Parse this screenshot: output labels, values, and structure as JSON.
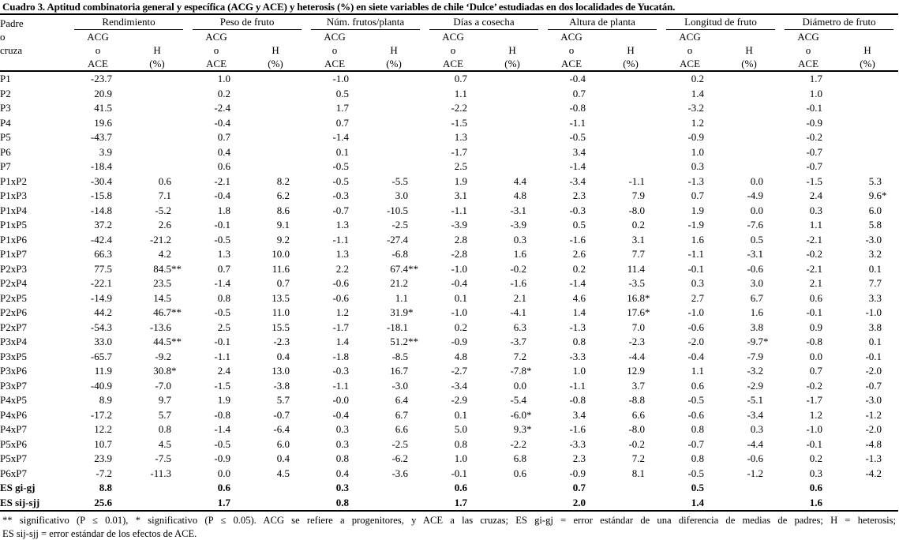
{
  "title": "Cuadro 3. Aptitud combinatoria general y específica (ACG y ACE) y heterosis (%) en siete variables de chile ‘Dulce’ estudiadas en dos localidades de Yucatán.",
  "table": {
    "row_header_lines": [
      "Padre",
      "o",
      "cruza"
    ],
    "groups": [
      "Rendimiento",
      "Peso de fruto",
      "Núm. frutos/planta",
      "Días a cosecha",
      "Altura de planta",
      "Longitud de fruto",
      "Diámetro de fruto"
    ],
    "subheaders": {
      "acg_lines": [
        "ACG",
        "o",
        "ACE"
      ],
      "h_lines": [
        "H",
        "(%)"
      ]
    },
    "rows": [
      {
        "label": "P1",
        "bold": false,
        "values": [
          "-23.7",
          "",
          "1.0",
          "",
          "-1.0",
          "",
          "0.7",
          "",
          "-0.4",
          "",
          "0.2",
          "",
          "1.7",
          ""
        ]
      },
      {
        "label": "P2",
        "bold": false,
        "values": [
          "20.9",
          "",
          "0.2",
          "",
          "0.5",
          "",
          "1.1",
          "",
          "0.7",
          "",
          "1.4",
          "",
          "1.0",
          ""
        ]
      },
      {
        "label": "P3",
        "bold": false,
        "values": [
          "41.5",
          "",
          "-2.4",
          "",
          "1.7",
          "",
          "-2.2",
          "",
          "-0.8",
          "",
          "-3.2",
          "",
          "-0.1",
          ""
        ]
      },
      {
        "label": "P4",
        "bold": false,
        "values": [
          "19.6",
          "",
          "-0.4",
          "",
          "0.7",
          "",
          "-1.5",
          "",
          "-1.1",
          "",
          "1.2",
          "",
          "-0.9",
          ""
        ]
      },
      {
        "label": "P5",
        "bold": false,
        "values": [
          "-43.7",
          "",
          "0.7",
          "",
          "-1.4",
          "",
          "1.3",
          "",
          "-0.5",
          "",
          "-0.9",
          "",
          "-0.2",
          ""
        ]
      },
      {
        "label": "P6",
        "bold": false,
        "values": [
          "3.9",
          "",
          "0.4",
          "",
          "0.1",
          "",
          "-1.7",
          "",
          "3.4",
          "",
          "1.0",
          "",
          "-0.7",
          ""
        ]
      },
      {
        "label": "P7",
        "bold": false,
        "values": [
          "-18.4",
          "",
          "0.6",
          "",
          "-0.5",
          "",
          "2.5",
          "",
          "-1.4",
          "",
          "0.3",
          "",
          "-0.7",
          ""
        ]
      },
      {
        "label": "P1xP2",
        "bold": false,
        "values": [
          "-30.4",
          "0.6",
          "-2.1",
          "8.2",
          "-0.5",
          "-5.5",
          "1.9",
          "4.4",
          "-3.4",
          "-1.1",
          "-1.3",
          "0.0",
          "-1.5",
          "5.3"
        ]
      },
      {
        "label": "P1xP3",
        "bold": false,
        "values": [
          "-15.8",
          "7.1",
          "-0.4",
          "6.2",
          "-0.3",
          "3.0",
          "3.1",
          "4.8",
          "2.3",
          "7.9",
          "0.7",
          "-4.9",
          "2.4",
          "9.6*"
        ]
      },
      {
        "label": "P1xP4",
        "bold": false,
        "values": [
          "-14.8",
          "-5.2",
          "1.8",
          "8.6",
          "-0.7",
          "-10.5",
          "-1.1",
          "-3.1",
          "-0.3",
          "-8.0",
          "1.9",
          "0.0",
          "0.3",
          "6.0"
        ]
      },
      {
        "label": "P1xP5",
        "bold": false,
        "values": [
          "37.2",
          "2.6",
          "-0.1",
          "9.1",
          "1.3",
          "-2.5",
          "-3.9",
          "-3.9",
          "0.5",
          "0.2",
          "-1.9",
          "-7.6",
          "1.1",
          "5.8"
        ]
      },
      {
        "label": "P1xP6",
        "bold": false,
        "values": [
          "-42.4",
          "-21.2",
          "-0.5",
          "9.2",
          "-1.1",
          "-27.4",
          "2.8",
          "0.3",
          "-1.6",
          "3.1",
          "1.6",
          "0.5",
          "-2.1",
          "-3.0"
        ]
      },
      {
        "label": "P1xP7",
        "bold": false,
        "values": [
          "66.3",
          "4.2",
          "1.3",
          "10.0",
          "1.3",
          "-6.8",
          "-2.8",
          "1.6",
          "2.6",
          "7.7",
          "-1.1",
          "-3.1",
          "-0.2",
          "3.2"
        ]
      },
      {
        "label": "P2xP3",
        "bold": false,
        "values": [
          "77.5",
          "84.5**",
          "0.7",
          "11.6",
          "2.2",
          "67.4**",
          "-1.0",
          "-0.2",
          "0.2",
          "11.4",
          "-0.1",
          "-0.6",
          "-2.1",
          "0.1"
        ]
      },
      {
        "label": "P2xP4",
        "bold": false,
        "values": [
          "-22.1",
          "23.5",
          "-1.4",
          "0.7",
          "-0.6",
          "21.2",
          "-0.4",
          "-1.6",
          "-1.4",
          "-3.5",
          "0.3",
          "3.0",
          "2.1",
          "7.7"
        ]
      },
      {
        "label": "P2xP5",
        "bold": false,
        "values": [
          "-14.9",
          "14.5",
          "0.8",
          "13.5",
          "-0.6",
          "1.1",
          "0.1",
          "2.1",
          "4.6",
          "16.8*",
          "2.7",
          "6.7",
          "0.6",
          "3.3"
        ]
      },
      {
        "label": "P2xP6",
        "bold": false,
        "values": [
          "44.2",
          "46.7**",
          "-0.5",
          "11.0",
          "1.2",
          "31.9*",
          "-1.0",
          "-4.1",
          "1.4",
          "17.6*",
          "-1.0",
          "1.6",
          "-0.1",
          "-1.0"
        ]
      },
      {
        "label": "P2xP7",
        "bold": false,
        "values": [
          "-54.3",
          "-13.6",
          "2.5",
          "15.5",
          "-1.7",
          "-18.1",
          "0.2",
          "6.3",
          "-1.3",
          "7.0",
          "-0.6",
          "3.8",
          "0.9",
          "3.8"
        ]
      },
      {
        "label": "P3xP4",
        "bold": false,
        "values": [
          "33.0",
          "44.5**",
          "-0.1",
          "-2.3",
          "1.4",
          "51.2**",
          "-0.9",
          "-3.7",
          "0.8",
          "-2.3",
          "-2.0",
          "-9.7*",
          "-0.8",
          "0.1"
        ]
      },
      {
        "label": "P3xP5",
        "bold": false,
        "values": [
          "-65.7",
          "-9.2",
          "-1.1",
          "0.4",
          "-1.8",
          "-8.5",
          "4.8",
          "7.2",
          "-3.3",
          "-4.4",
          "-0.4",
          "-7.9",
          "0.0",
          "-0.1"
        ]
      },
      {
        "label": "P3xP6",
        "bold": false,
        "values": [
          "11.9",
          "30.8*",
          "2.4",
          "13.0",
          "-0.3",
          "16.7",
          "-2.7",
          "-7.8*",
          "1.0",
          "12.9",
          "1.1",
          "-3.2",
          "0.7",
          "-2.0"
        ]
      },
      {
        "label": "P3xP7",
        "bold": false,
        "values": [
          "-40.9",
          "-7.0",
          "-1.5",
          "-3.8",
          "-1.1",
          "-3.0",
          "-3.4",
          "0.0",
          "-1.1",
          "3.7",
          "0.6",
          "-2.9",
          "-0.2",
          "-0.7"
        ]
      },
      {
        "label": "P4xP5",
        "bold": false,
        "values": [
          "8.9",
          "9.7",
          "1.9",
          "5.7",
          "-0.0",
          "6.4",
          "-2.9",
          "-5.4",
          "-0.8",
          "-8.8",
          "-0.5",
          "-5.1",
          "-1.7",
          "-3.0"
        ]
      },
      {
        "label": "P4xP6",
        "bold": false,
        "values": [
          "-17.2",
          "5.7",
          "-0.8",
          "-0.7",
          "-0.4",
          "6.7",
          "0.1",
          "-6.0*",
          "3.4",
          "6.6",
          "-0.6",
          "-3.4",
          "1.2",
          "-1.2"
        ]
      },
      {
        "label": "P4xP7",
        "bold": false,
        "values": [
          "12.2",
          "0.8",
          "-1.4",
          "-6.4",
          "0.3",
          "6.6",
          "5.0",
          "9.3*",
          "-1.6",
          "-8.0",
          "0.8",
          "0.3",
          "-1.0",
          "-2.0"
        ]
      },
      {
        "label": "P5xP6",
        "bold": false,
        "values": [
          "10.7",
          "4.5",
          "-0.5",
          "6.0",
          "0.3",
          "-2.5",
          "0.8",
          "-2.2",
          "-3.3",
          "-0.2",
          "-0.7",
          "-4.4",
          "-0.1",
          "-4.8"
        ]
      },
      {
        "label": "P5xP7",
        "bold": false,
        "values": [
          "23.9",
          "-7.5",
          "-0.9",
          "0.4",
          "0.8",
          "-6.2",
          "1.0",
          "6.8",
          "2.3",
          "7.2",
          "0.8",
          "-0.6",
          "0.2",
          "-1.3"
        ]
      },
      {
        "label": "P6xP7",
        "bold": false,
        "values": [
          "-7.2",
          "-11.3",
          "0.0",
          "4.5",
          "0.4",
          "-3.6",
          "-0.1",
          "0.6",
          "-0.9",
          "8.1",
          "-0.5",
          "-1.2",
          "0.3",
          "-4.2"
        ]
      },
      {
        "label": "ES gi-gj",
        "bold": true,
        "values": [
          "8.8",
          "",
          "0.6",
          "",
          "0.3",
          "",
          "0.6",
          "",
          "0.7",
          "",
          "0.5",
          "",
          "0.6",
          ""
        ]
      },
      {
        "label": "ES sij-sjj",
        "bold": true,
        "values": [
          "25.6",
          "",
          "1.7",
          "",
          "0.8",
          "",
          "1.7",
          "",
          "2.0",
          "",
          "1.4",
          "",
          "1.6",
          ""
        ]
      }
    ]
  },
  "footnotes": {
    "line1": "** significativo (P ≤ 0.01), * significativo (P ≤ 0.05). ACG se refiere a progenitores, y ACE a las cruzas; ES gi-gj = error estándar de una diferencia de medias de padres; H = heterosis;",
    "line2": "ES sij-sjj = error estándar de los efectos de ACE."
  }
}
